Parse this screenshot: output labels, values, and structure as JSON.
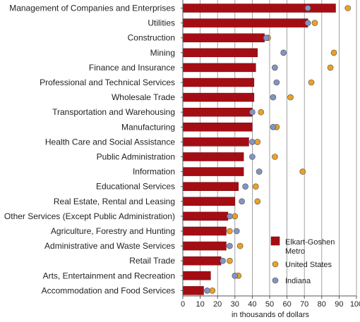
{
  "chart_data": {
    "type": "bar",
    "orientation": "horizontal",
    "xlabel": "in thousands of dollars",
    "xlim": [
      0,
      100
    ],
    "xticks": [
      0,
      10,
      20,
      30,
      40,
      50,
      60,
      70,
      80,
      90,
      100
    ],
    "grid": "vertical",
    "legend_position": "bottom-right",
    "categories": [
      "Management of Companies and Enterprises",
      "Utilities",
      "Construction",
      "Mining",
      "Finance and Insurance",
      "Professional and Technical Services",
      "Wholesale Trade",
      "Transportation and Warehousing",
      "Manufacturing",
      "Health Care and Social Assistance",
      "Public Administration",
      "Information",
      "Educational Services",
      "Real Estate, Rental and Leasing",
      "Other Services (Except Public Administration)",
      "Agriculture, Forestry and Hunting",
      "Administrative and Waste Services",
      "Retail Trade",
      "Arts, Entertainment and Recreation",
      "Accommodation and Food Services"
    ],
    "series": [
      {
        "name": "Elkart-Goshen Metro",
        "mark": "bar",
        "color": "#a50d14",
        "values": [
          88,
          72,
          47,
          43,
          42,
          41,
          41,
          40,
          40,
          38,
          35,
          35,
          32,
          30,
          26,
          25,
          25,
          22,
          16,
          12
        ]
      },
      {
        "name": "United States",
        "mark": "dot",
        "color": "#eaa126",
        "values": [
          95,
          76,
          49,
          87,
          85,
          74,
          62,
          45,
          54,
          43,
          53,
          69,
          42,
          43,
          30,
          27,
          33,
          27,
          32,
          17
        ]
      },
      {
        "name": "Indiana",
        "mark": "dot",
        "color": "#8494c2",
        "values": [
          72,
          72,
          48,
          58,
          53,
          54,
          52,
          40,
          52,
          40,
          40,
          44,
          36,
          34,
          27,
          31,
          27,
          23,
          30,
          14
        ]
      }
    ]
  }
}
